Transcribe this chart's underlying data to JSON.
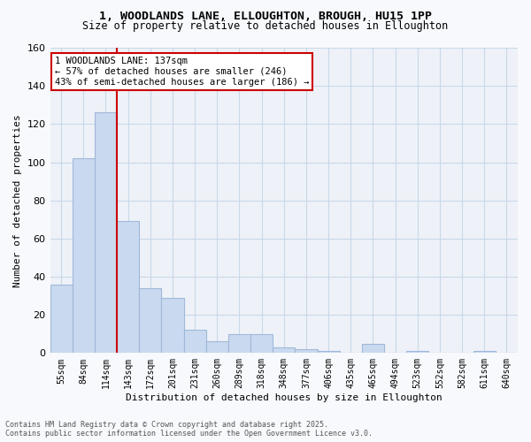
{
  "title_line1": "1, WOODLANDS LANE, ELLOUGHTON, BROUGH, HU15 1PP",
  "title_line2": "Size of property relative to detached houses in Elloughton",
  "xlabel": "Distribution of detached houses by size in Elloughton",
  "ylabel": "Number of detached properties",
  "categories": [
    "55sqm",
    "84sqm",
    "114sqm",
    "143sqm",
    "172sqm",
    "201sqm",
    "231sqm",
    "260sqm",
    "289sqm",
    "318sqm",
    "348sqm",
    "377sqm",
    "406sqm",
    "435sqm",
    "465sqm",
    "494sqm",
    "523sqm",
    "552sqm",
    "582sqm",
    "611sqm",
    "640sqm"
  ],
  "values": [
    36,
    102,
    126,
    69,
    34,
    29,
    12,
    6,
    10,
    10,
    3,
    2,
    1,
    0,
    5,
    0,
    1,
    0,
    0,
    1,
    0
  ],
  "bar_color": "#c9d9f0",
  "bar_edge_color": "#a0b8d8",
  "grid_color": "#c8d8e8",
  "bg_color": "#eef2f8",
  "annotation_text": "1 WOODLANDS LANE: 137sqm\n← 57% of detached houses are smaller (246)\n43% of semi-detached houses are larger (186) →",
  "vline_x_index": 2.5,
  "vline_color": "#cc0000",
  "annotation_box_color": "#cc0000",
  "ylim": [
    0,
    160
  ],
  "yticks": [
    0,
    20,
    40,
    60,
    80,
    100,
    120,
    140,
    160
  ],
  "footer_line1": "Contains HM Land Registry data © Crown copyright and database right 2025.",
  "footer_line2": "Contains public sector information licensed under the Open Government Licence v3.0."
}
